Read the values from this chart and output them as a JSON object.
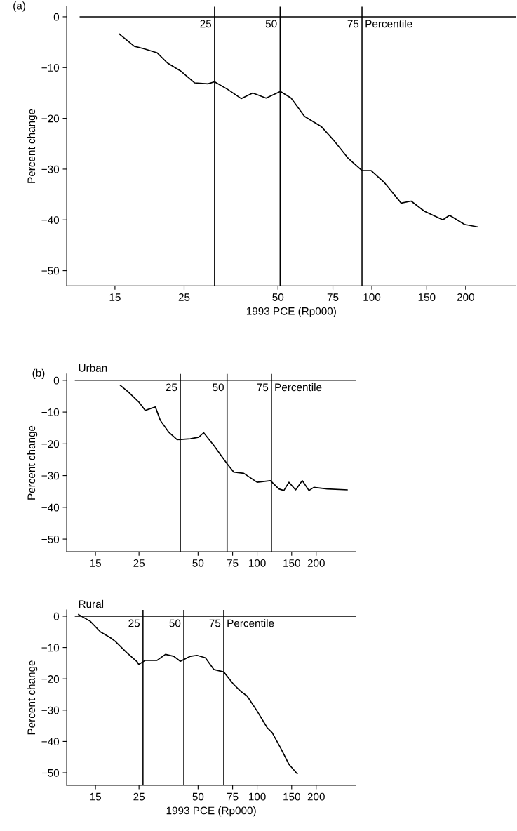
{
  "chart_data": [
    {
      "type": "line",
      "title": "(a)",
      "ylabel": "Percent change",
      "xlabel": "1993 PCE (Rp000)",
      "log": "x",
      "grid": false,
      "legend": false,
      "marker": "none",
      "line_style": "solid",
      "xlim": [
        10.5,
        290
      ],
      "xticks": [
        15,
        25,
        50,
        75,
        100,
        150,
        200
      ],
      "ylim": [
        -53,
        2
      ],
      "yticks": [
        0,
        {
          "value": -10,
          "label": "−10"
        },
        {
          "value": -20,
          "label": "−20"
        },
        {
          "value": -30,
          "label": "−30"
        },
        {
          "value": -40,
          "label": "−40"
        },
        {
          "value": -50,
          "label": "−50"
        }
      ],
      "ref_lines": [
        {
          "axis": "y",
          "value": 0,
          "color": "#000000"
        },
        {
          "axis": "x",
          "value": 31.3,
          "color": "#000000"
        },
        {
          "axis": "x",
          "value": 50.8,
          "color": "#000000"
        },
        {
          "axis": "x",
          "value": 93,
          "color": "#000000"
        }
      ],
      "annotations": [
        {
          "text": "25",
          "x": 31.3,
          "y": 0
        },
        {
          "text": "50",
          "x": 50.8,
          "y": 0
        },
        {
          "text": "75",
          "x": 93,
          "y": 0
        },
        {
          "text": "Percentile",
          "x": 93,
          "y": 0
        }
      ],
      "series": [
        {
          "color": "#000000",
          "x": [
            15.5,
            17.3,
            18.6,
            20.5,
            22.1,
            24.4,
            27.0,
            29.8,
            31.3,
            34.5,
            38.1,
            41.5,
            45.8,
            50.9,
            55.1,
            60.8,
            68.8,
            75.9,
            83.8,
            93.1,
            99.5,
            109.9,
            124.2,
            133.7,
            147.5,
            169.0,
            177.5,
            198.3,
            218.6
          ],
          "values": [
            -3.4,
            -5.8,
            -6.3,
            -7.1,
            -9.1,
            -10.7,
            -13.0,
            -13.2,
            -12.8,
            -14.3,
            -16.1,
            -15.0,
            -16.0,
            -14.7,
            -16.0,
            -19.6,
            -21.6,
            -24.5,
            -27.8,
            -30.3,
            -30.3,
            -32.7,
            -36.7,
            -36.3,
            -38.3,
            -40.0,
            -39.1,
            -40.9,
            -41.4
          ]
        }
      ]
    },
    {
      "type": "line",
      "title": "(b)",
      "subtitle": "Urban",
      "ylabel": "Percent change",
      "log": "x",
      "grid": false,
      "legend": false,
      "marker": "none",
      "line_style": "solid",
      "xlim": [
        10.7,
        318
      ],
      "xticks": [
        15,
        25,
        50,
        75,
        100,
        150,
        200
      ],
      "ylim": [
        -54,
        2
      ],
      "yticks": [
        0,
        {
          "value": -10,
          "label": "−10"
        },
        {
          "value": -20,
          "label": "−20"
        },
        {
          "value": -30,
          "label": "−30"
        },
        {
          "value": -40,
          "label": "−40"
        },
        {
          "value": -50,
          "label": "−50"
        }
      ],
      "ref_lines": [
        {
          "axis": "y",
          "value": 0,
          "color": "#000000"
        },
        {
          "axis": "x",
          "value": 40.6,
          "color": "#000000"
        },
        {
          "axis": "x",
          "value": 70.3,
          "color": "#000000"
        },
        {
          "axis": "x",
          "value": 118.3,
          "color": "#000000"
        }
      ],
      "annotations": [
        {
          "text": "25",
          "x": 40.6,
          "y": 0
        },
        {
          "text": "50",
          "x": 70.3,
          "y": 0
        },
        {
          "text": "75",
          "x": 118.3,
          "y": 0
        },
        {
          "text": "Percentile",
          "x": 118.3,
          "y": 0
        }
      ],
      "series": [
        {
          "color": "#000000",
          "x": [
            20.1,
            22.1,
            24.9,
            26.9,
            28.6,
            30.3,
            32.1,
            35.4,
            39.1,
            45.7,
            50.4,
            53.4,
            60.1,
            70.3,
            76.0,
            85.5,
            100,
            116.9,
            129.1,
            136.9,
            145.2,
            157.1,
            169.9,
            183.7,
            194.6,
            227.6,
            287.7
          ],
          "values": [
            -1.6,
            -3.7,
            -6.8,
            -9.5,
            -8.9,
            -8.4,
            -12.6,
            -16.3,
            -18.7,
            -18.4,
            -17.9,
            -16.5,
            -20.5,
            -26.3,
            -28.9,
            -29.3,
            -32.1,
            -31.6,
            -34.2,
            -34.7,
            -32.1,
            -34.5,
            -31.6,
            -34.7,
            -33.7,
            -34.2,
            -34.5
          ]
        }
      ]
    },
    {
      "type": "line",
      "subtitle": "Rural",
      "ylabel": "Percent change",
      "xlabel": "1993 PCE (Rp000)",
      "log": "x",
      "grid": false,
      "legend": false,
      "marker": "none",
      "line_style": "solid",
      "xlim": [
        10.7,
        318
      ],
      "xticks": [
        15,
        25,
        50,
        75,
        100,
        150,
        200
      ],
      "ylim": [
        -54,
        2
      ],
      "yticks": [
        0,
        {
          "value": -10,
          "label": "−10"
        },
        {
          "value": -20,
          "label": "−20"
        },
        {
          "value": -30,
          "label": "−30"
        },
        {
          "value": -40,
          "label": "−40"
        },
        {
          "value": -50,
          "label": "−50"
        }
      ],
      "ref_lines": [
        {
          "axis": "y",
          "value": 0,
          "color": "#000000"
        },
        {
          "axis": "x",
          "value": 26.2,
          "color": "#000000"
        },
        {
          "axis": "x",
          "value": 42.3,
          "color": "#000000"
        },
        {
          "axis": "x",
          "value": 67.6,
          "color": "#000000"
        }
      ],
      "annotations": [
        {
          "text": "25",
          "x": 26.2,
          "y": 0
        },
        {
          "text": "50",
          "x": 42.3,
          "y": 0
        },
        {
          "text": "75",
          "x": 67.6,
          "y": 0
        },
        {
          "text": "Percentile",
          "x": 67.6,
          "y": 0
        }
      ],
      "series": [
        {
          "color": "#000000",
          "x": [
            12.3,
            14.1,
            15.9,
            17.9,
            18.9,
            21.7,
            24.5,
            24.9,
            26.9,
            30.9,
            34.1,
            37.6,
            40.6,
            45.7,
            49.4,
            54.5,
            60.1,
            67.6,
            76.0,
            82.2,
            88.9,
            100,
            112.5,
            119.3,
            131.5,
            145.2,
            160
          ],
          "values": [
            0.5,
            -1.6,
            -5.0,
            -6.9,
            -8.0,
            -11.7,
            -14.6,
            -15.4,
            -14.1,
            -14.1,
            -12.2,
            -12.8,
            -14.4,
            -12.8,
            -12.5,
            -13.3,
            -17.0,
            -17.8,
            -21.8,
            -23.9,
            -25.5,
            -30.3,
            -35.6,
            -37.2,
            -42.0,
            -47.3,
            -50.3
          ]
        }
      ]
    }
  ]
}
